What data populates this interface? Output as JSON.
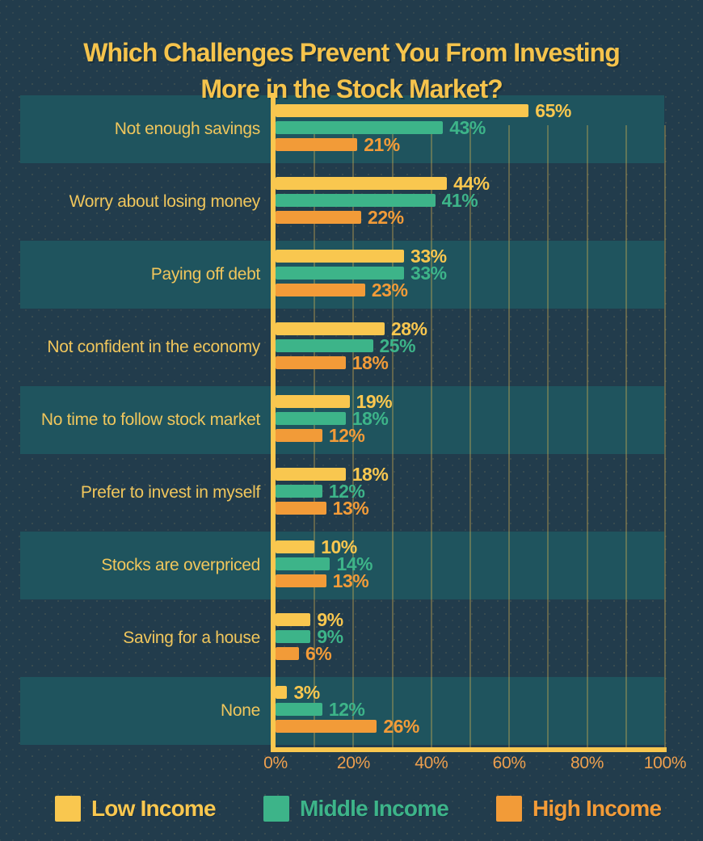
{
  "title": "Which Challenges Prevent You From Investing More in the Stock Market?",
  "chart_data": {
    "type": "bar",
    "orientation": "horizontal",
    "title": "Which Challenges Prevent You From Investing More in the Stock Market?",
    "categories": [
      "Not enough savings",
      "Worry about losing money",
      "Paying off debt",
      "Not confident in the economy",
      "No time to follow stock market",
      "Prefer to invest in myself",
      "Stocks are overpriced",
      "Saving for a house",
      "None"
    ],
    "series": [
      {
        "name": "Low Income",
        "color": "#F9C74F",
        "values": [
          65,
          44,
          33,
          28,
          19,
          18,
          10,
          9,
          3
        ]
      },
      {
        "name": "Middle Income",
        "color": "#3DB489",
        "values": [
          43,
          41,
          33,
          25,
          18,
          12,
          14,
          9,
          12
        ]
      },
      {
        "name": "High Income",
        "color": "#F29B38",
        "values": [
          21,
          22,
          23,
          18,
          12,
          13,
          13,
          6,
          26
        ]
      }
    ],
    "value_suffix": "%",
    "xlim": [
      0,
      100
    ],
    "x_ticks": [
      "0%",
      "20%",
      "40%",
      "60%",
      "80%",
      "100%"
    ],
    "grid": "vertical gridlines every 10%",
    "legend_position": "bottom",
    "row_shading": "alternate rows (1st, 3rd, 5th, 7th, 9th) have teal band"
  },
  "colors": {
    "background": "#223C4C",
    "row_band": "#1F545E",
    "gridline": "rgba(249,199,79,0.30)",
    "axis_line": "#F9C74F",
    "title_text": "#F5C34C",
    "category_text": "#F0C65C",
    "tick_text": "#EFA04E"
  }
}
